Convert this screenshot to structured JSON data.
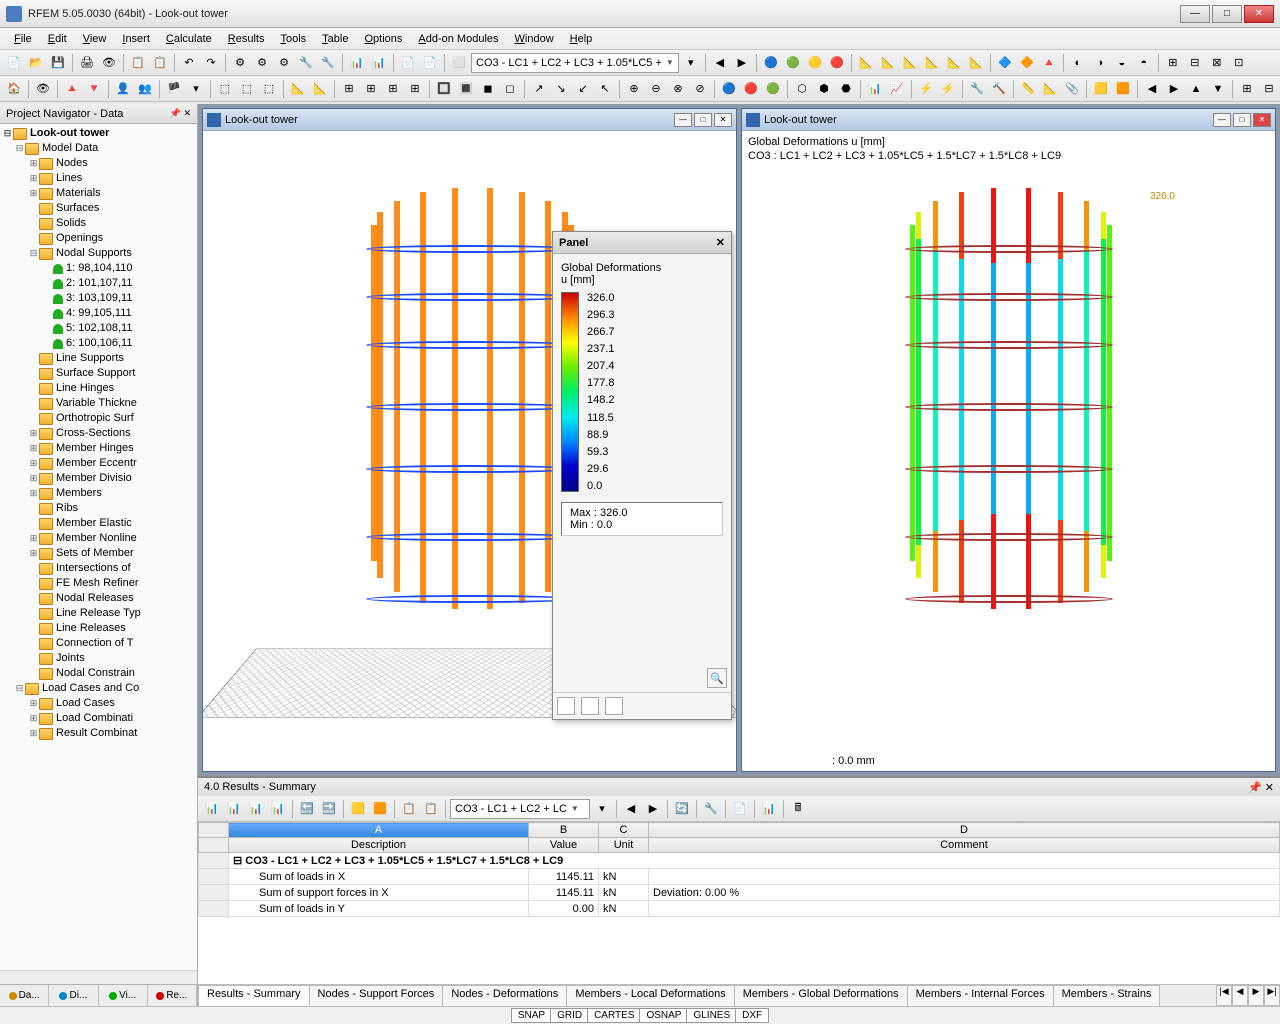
{
  "app": {
    "title": "RFEM 5.05.0030 (64bit) - Look-out tower"
  },
  "menu": [
    "File",
    "Edit",
    "View",
    "Insert",
    "Calculate",
    "Results",
    "Tools",
    "Table",
    "Options",
    "Add-on Modules",
    "Window",
    "Help"
  ],
  "combo1": "CO3 - LC1 + LC2 + LC3 + 1.05*LC5 +",
  "navigator": {
    "title": "Project Navigator - Data",
    "root": "Look-out tower",
    "modelData": "Model Data",
    "items1": [
      "Nodes",
      "Lines",
      "Materials",
      "Surfaces",
      "Solids",
      "Openings"
    ],
    "nodalSupports": "Nodal Supports",
    "supports": [
      "1: 98,104,110",
      "2: 101,107,11",
      "3: 103,109,11",
      "4: 99,105,111",
      "5: 102,108,11",
      "6: 100,106,11"
    ],
    "items2": [
      "Line Supports",
      "Surface Support",
      "Line Hinges",
      "Variable Thickne",
      "Orthotropic Surf",
      "Cross-Sections",
      "Member Hinges",
      "Member Eccentr",
      "Member Divisio",
      "Members",
      "Ribs",
      "Member Elastic",
      "Member Nonline",
      "Sets of Member",
      "Intersections of",
      "FE Mesh Refiner",
      "Nodal Releases",
      "Line Release Typ",
      "Line Releases",
      "Connection of T",
      "Joints",
      "Nodal Constrain"
    ],
    "loadGroup": "Load Cases and Co",
    "loadItems": [
      "Load Cases",
      "Load Combinati",
      "Result Combinat"
    ],
    "tabs": [
      "Da...",
      "Di...",
      "Vi...",
      "Re..."
    ]
  },
  "views": {
    "left": {
      "title": "Look-out tower"
    },
    "right": {
      "title": "Look-out tower",
      "info1": "Global Deformations u [mm]",
      "info2": "CO3 : LC1 + LC2 + LC3 + 1.05*LC5 + 1.5*LC7 + 1.5*LC8 + LC9",
      "statusText": ": 0.0 mm",
      "peak": "326.0"
    }
  },
  "panel": {
    "title": "Panel",
    "heading": "Global Deformations",
    "unit": "u [mm]",
    "values": [
      "326.0",
      "296.3",
      "266.7",
      "237.1",
      "207.4",
      "177.8",
      "148.2",
      "118.5",
      "88.9",
      "59.3",
      "29.6",
      "0.0"
    ],
    "max": "Max  :   326.0",
    "min": "Min   :       0.0",
    "gradient": [
      "#c00000",
      "#ff4000",
      "#ff8800",
      "#ffcc00",
      "#ccee00",
      "#66ee00",
      "#00e666",
      "#00e6cc",
      "#0088ff",
      "#0044ff",
      "#0000cc",
      "#000088"
    ]
  },
  "results": {
    "title": "4.0 Results - Summary",
    "combo": "CO3 - LC1 + LC2 + LC",
    "cols": [
      "A",
      "B",
      "C",
      "D"
    ],
    "heads": [
      "Description",
      "Value",
      "Unit",
      "Comment"
    ],
    "grouprow": "CO3 - LC1 + LC2 + LC3 + 1.05*LC5 + 1.5*LC7 + 1.5*LC8 + LC9",
    "rows": [
      {
        "desc": "Sum of loads in X",
        "val": "1145.11",
        "unit": "kN",
        "comment": ""
      },
      {
        "desc": "Sum of support forces in X",
        "val": "1145.11",
        "unit": "kN",
        "comment": "Deviation:  0.00 %"
      },
      {
        "desc": "Sum of loads in Y",
        "val": "0.00",
        "unit": "kN",
        "comment": ""
      }
    ],
    "tabs": [
      "Results - Summary",
      "Nodes - Support Forces",
      "Nodes - Deformations",
      "Members - Local Deformations",
      "Members - Global Deformations",
      "Members - Internal Forces",
      "Members - Strains"
    ]
  },
  "status": [
    "SNAP",
    "GRID",
    "CARTES",
    "OSNAP",
    "GLINES",
    "DXF"
  ]
}
